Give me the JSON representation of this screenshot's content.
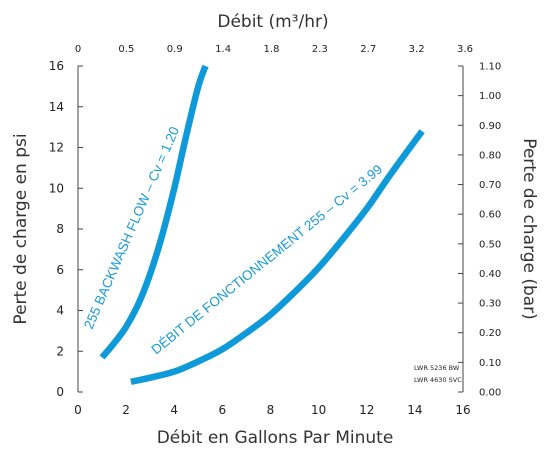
{
  "chart_data": {
    "type": "line",
    "title": "",
    "top_axis": {
      "label": "Débit (m³/hr)",
      "ticks": [
        "0",
        "0.5",
        "0.9",
        "1.4",
        "1.8",
        "2.3",
        "2.7",
        "3.2",
        "3.6"
      ]
    },
    "xlabel": "Débit en Gallons Par Minute",
    "ylabel": "Perte de charge en psi",
    "right_axis": {
      "label": "Perte de charge (bar)",
      "ticks": [
        "0.00",
        "0.10",
        "0.20",
        "0.30",
        "0.40",
        "0.50",
        "0.60",
        "0.70",
        "0.80",
        "0.90",
        "1.00",
        "1.10"
      ]
    },
    "xlim": [
      0,
      16
    ],
    "ylim": [
      0,
      16
    ],
    "x_ticks": [
      0,
      2,
      4,
      6,
      8,
      10,
      12,
      14,
      16
    ],
    "y_ticks": [
      0,
      2,
      4,
      6,
      8,
      10,
      12,
      14,
      16
    ],
    "grid": false,
    "color": "#0e9ad8",
    "series": [
      {
        "name": "255 BACKWASH FLOW – Cv = 1.20",
        "x": [
          1.0,
          1.5,
          2.0,
          2.5,
          3.0,
          3.5,
          4.0,
          4.5,
          5.0,
          5.3
        ],
        "y": [
          1.7,
          2.4,
          3.2,
          4.3,
          5.8,
          7.7,
          10.0,
          12.6,
          15.0,
          16.0
        ]
      },
      {
        "name": "DÉBIT DE FONCTIONNEMENT 255 – Cv = 3.99",
        "x": [
          2.2,
          3,
          4,
          5,
          6,
          7,
          8,
          9,
          10,
          11,
          12,
          13,
          14.3
        ],
        "y": [
          0.5,
          0.7,
          1.0,
          1.5,
          2.1,
          2.9,
          3.8,
          4.9,
          6.1,
          7.5,
          9.0,
          10.7,
          12.8
        ]
      }
    ],
    "annotations": [
      "LWR 5236  BW",
      "LWR 4630 SVC"
    ]
  }
}
